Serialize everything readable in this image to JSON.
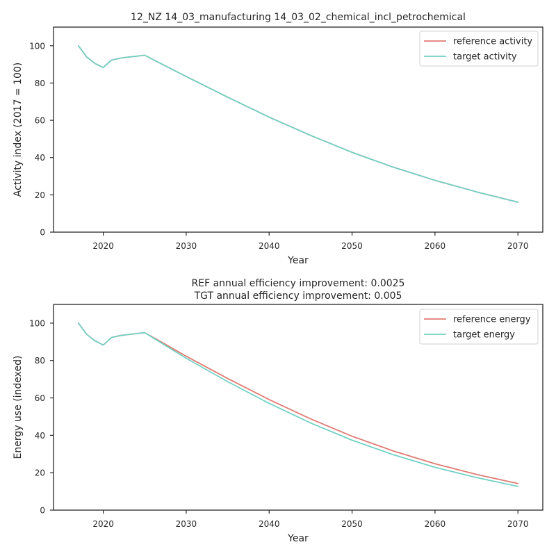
{
  "chart_data": [
    {
      "type": "line",
      "title": "12_NZ 14_03_manufacturing 14_03_02_chemical_incl_petrochemical",
      "subtitle": "",
      "xlabel": "Year",
      "ylabel": "Activity index (2017 = 100)",
      "xlim": [
        2014,
        2073
      ],
      "ylim": [
        0,
        110
      ],
      "xticks": [
        2020,
        2030,
        2040,
        2050,
        2060,
        2070
      ],
      "yticks": [
        0,
        20,
        40,
        60,
        80,
        100
      ],
      "grid": false,
      "legend_position": "top-right",
      "series": [
        {
          "name": "reference activity",
          "color": "#e07b72",
          "x": [
            2017,
            2018,
            2019,
            2020,
            2021,
            2022,
            2023,
            2024,
            2025,
            2026,
            2027,
            2030,
            2035,
            2040,
            2045,
            2050,
            2055,
            2060,
            2065,
            2070
          ],
          "y": [
            100,
            94,
            90.5,
            88.3,
            92.3,
            93.3,
            93.9,
            94.4,
            94.9,
            92.6,
            90.3,
            83.5,
            72.4,
            61.7,
            51.9,
            42.8,
            34.8,
            27.8,
            21.6,
            16.1
          ]
        },
        {
          "name": "target activity",
          "color": "#72d1c4",
          "x": [
            2017,
            2018,
            2019,
            2020,
            2021,
            2022,
            2023,
            2024,
            2025,
            2026,
            2027,
            2030,
            2035,
            2040,
            2045,
            2050,
            2055,
            2060,
            2065,
            2070
          ],
          "y": [
            100,
            94,
            90.5,
            88.3,
            92.3,
            93.3,
            93.9,
            94.4,
            94.9,
            92.6,
            90.3,
            83.5,
            72.4,
            61.7,
            51.9,
            42.8,
            34.8,
            27.8,
            21.6,
            16.1
          ]
        }
      ]
    },
    {
      "type": "line",
      "title": "REF annual efficiency improvement: 0.0025",
      "subtitle": "TGT annual efficiency improvement: 0.005",
      "xlabel": "Year",
      "ylabel": "Energy use (indexed)",
      "xlim": [
        2014,
        2073
      ],
      "ylim": [
        0,
        110
      ],
      "xticks": [
        2020,
        2030,
        2040,
        2050,
        2060,
        2070
      ],
      "yticks": [
        0,
        20,
        40,
        60,
        80,
        100
      ],
      "grid": false,
      "legend_position": "top-right",
      "series": [
        {
          "name": "reference energy",
          "color": "#e07b72",
          "x": [
            2017,
            2018,
            2019,
            2020,
            2021,
            2022,
            2023,
            2024,
            2025,
            2026,
            2027,
            2030,
            2035,
            2040,
            2045,
            2050,
            2055,
            2060,
            2065,
            2070
          ],
          "y": [
            100,
            94,
            90.5,
            88.3,
            92.3,
            93.3,
            93.9,
            94.4,
            94.9,
            92.4,
            89.9,
            82.3,
            70.4,
            59.1,
            48.8,
            39.5,
            31.6,
            24.8,
            19.1,
            14.2
          ]
        },
        {
          "name": "target energy",
          "color": "#72d1c4",
          "x": [
            2017,
            2018,
            2019,
            2020,
            2021,
            2022,
            2023,
            2024,
            2025,
            2026,
            2027,
            2030,
            2035,
            2040,
            2045,
            2050,
            2055,
            2060,
            2065,
            2070
          ],
          "y": [
            100,
            94,
            90.5,
            88.3,
            92.3,
            93.3,
            93.9,
            94.4,
            94.9,
            92.1,
            89.4,
            81.2,
            68.7,
            57.1,
            46.6,
            37.4,
            29.6,
            22.9,
            17.4,
            12.7
          ]
        }
      ]
    }
  ]
}
